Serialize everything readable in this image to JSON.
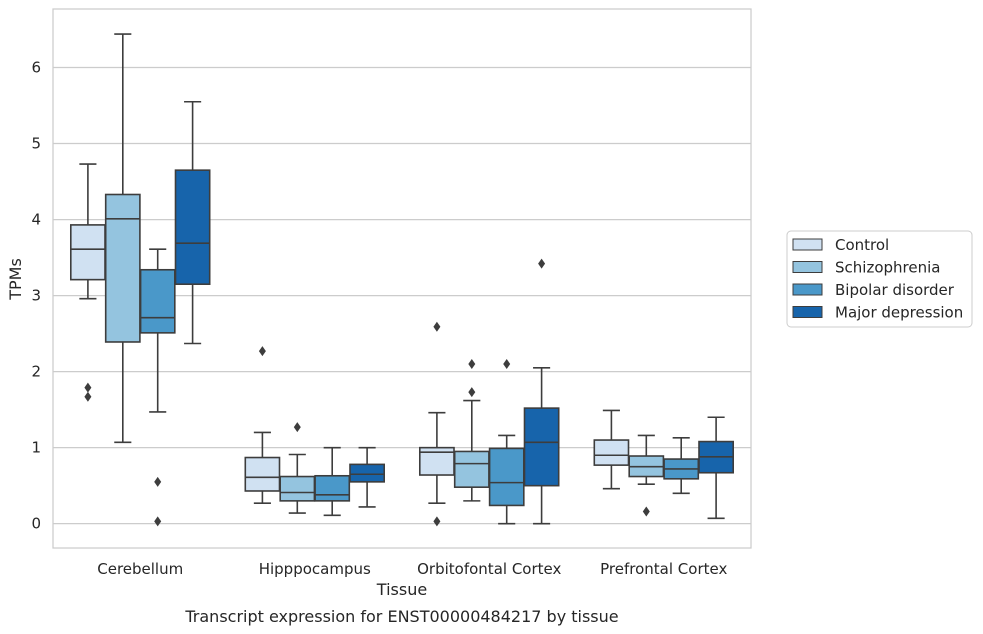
{
  "chart_data": {
    "type": "box",
    "title": "",
    "caption": "Transcript expression for ENST00000484217 by tissue",
    "xlabel": "Tissue",
    "ylabel": "TPMs",
    "ylim": [
      -0.32,
      6.77
    ],
    "yticks": [
      0,
      1,
      2,
      3,
      4,
      5,
      6
    ],
    "grid": "horizontal",
    "legend_position": "right",
    "categories": [
      "Cerebellum",
      "Hipppocampus",
      "Orbitofontal Cortex",
      "Prefrontal Cortex"
    ],
    "series": [
      {
        "name": "Control",
        "color": "#d0e1f2",
        "boxes": [
          {
            "whislo": 2.96,
            "q1": 3.21,
            "med": 3.61,
            "q3": 3.93,
            "whishi": 4.73,
            "fliers": [
              1.79,
              1.67
            ]
          },
          {
            "whislo": 0.27,
            "q1": 0.43,
            "med": 0.61,
            "q3": 0.87,
            "whishi": 1.2,
            "fliers": [
              2.27
            ]
          },
          {
            "whislo": 0.27,
            "q1": 0.64,
            "med": 0.94,
            "q3": 1.0,
            "whishi": 1.46,
            "fliers": [
              2.59,
              0.03
            ]
          },
          {
            "whislo": 0.46,
            "q1": 0.77,
            "med": 0.9,
            "q3": 1.1,
            "whishi": 1.49,
            "fliers": []
          }
        ]
      },
      {
        "name": "Schizophrenia",
        "color": "#94c4df",
        "boxes": [
          {
            "whislo": 1.07,
            "q1": 2.39,
            "med": 4.01,
            "q3": 4.33,
            "whishi": 6.44,
            "fliers": []
          },
          {
            "whislo": 0.14,
            "q1": 0.3,
            "med": 0.41,
            "q3": 0.62,
            "whishi": 0.91,
            "fliers": [
              1.27
            ]
          },
          {
            "whislo": 0.3,
            "q1": 0.48,
            "med": 0.79,
            "q3": 0.95,
            "whishi": 1.62,
            "fliers": [
              2.1,
              1.73
            ]
          },
          {
            "whislo": 0.52,
            "q1": 0.62,
            "med": 0.75,
            "q3": 0.89,
            "whishi": 1.16,
            "fliers": [
              0.16
            ]
          }
        ]
      },
      {
        "name": "Bipolar disorder",
        "color": "#4a98c9",
        "boxes": [
          {
            "whislo": 1.47,
            "q1": 2.51,
            "med": 2.71,
            "q3": 3.34,
            "whishi": 3.61,
            "fliers": [
              0.55,
              0.03
            ]
          },
          {
            "whislo": 0.11,
            "q1": 0.3,
            "med": 0.38,
            "q3": 0.63,
            "whishi": 1.0,
            "fliers": []
          },
          {
            "whislo": 0.0,
            "q1": 0.24,
            "med": 0.54,
            "q3": 0.99,
            "whishi": 1.16,
            "fliers": [
              2.1
            ]
          },
          {
            "whislo": 0.4,
            "q1": 0.59,
            "med": 0.72,
            "q3": 0.85,
            "whishi": 1.13,
            "fliers": []
          }
        ]
      },
      {
        "name": "Major depression",
        "color": "#1764ab",
        "boxes": [
          {
            "whislo": 2.37,
            "q1": 3.15,
            "med": 3.69,
            "q3": 4.65,
            "whishi": 5.55,
            "fliers": []
          },
          {
            "whislo": 0.22,
            "q1": 0.55,
            "med": 0.65,
            "q3": 0.78,
            "whishi": 1.0,
            "fliers": []
          },
          {
            "whislo": 0.0,
            "q1": 0.5,
            "med": 1.07,
            "q3": 1.52,
            "whishi": 2.05,
            "fliers": [
              3.42
            ]
          },
          {
            "whislo": 0.07,
            "q1": 0.67,
            "med": 0.88,
            "q3": 1.08,
            "whishi": 1.4,
            "fliers": []
          }
        ]
      }
    ]
  }
}
